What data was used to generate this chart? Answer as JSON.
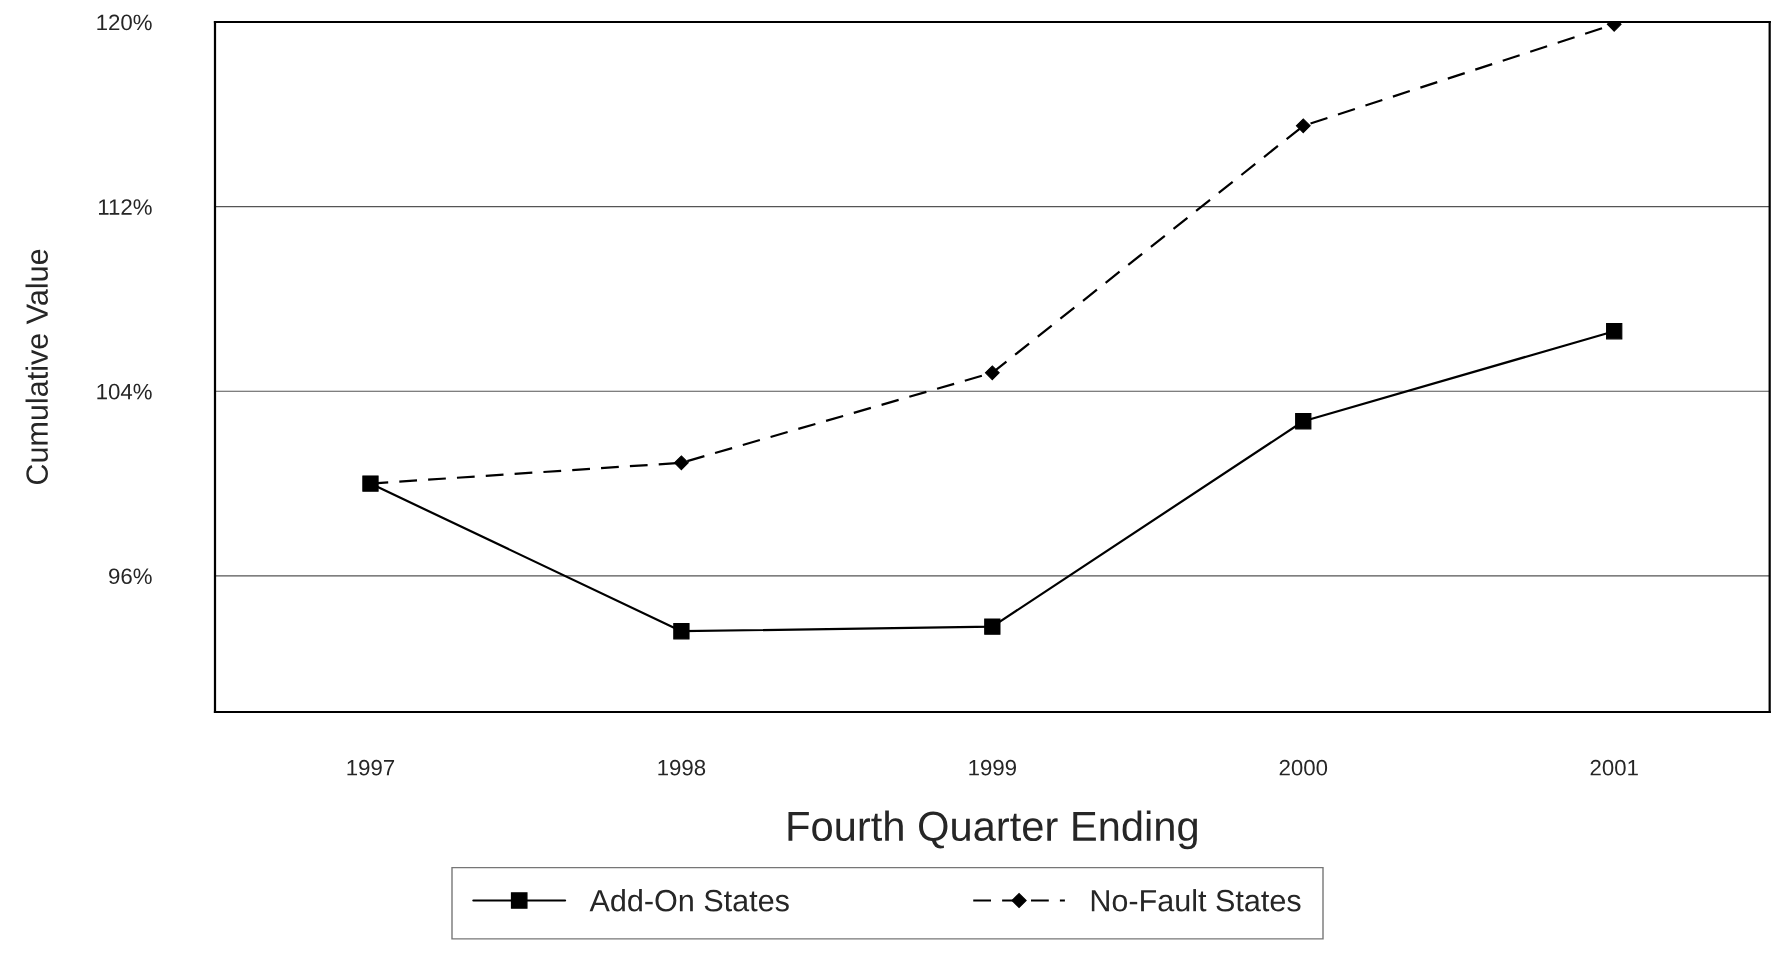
{
  "chart_data": {
    "type": "line",
    "xlabel": "Fourth Quarter Ending",
    "ylabel": "Cumulative Value",
    "categories": [
      "1997",
      "1998",
      "1999",
      "2000",
      "2001"
    ],
    "series": [
      {
        "name": "Add-On States",
        "color": "#000000",
        "marker": "square",
        "line_style": "solid",
        "values": [
          100.0,
          93.6,
          93.8,
          102.7,
          106.6
        ]
      },
      {
        "name": "No-Fault States",
        "color": "#000000",
        "marker": "diamond",
        "line_style": "dashed",
        "values": [
          100.0,
          100.9,
          104.8,
          115.5,
          119.9
        ]
      }
    ],
    "ylim": [
      90.1,
      120
    ],
    "yticks": [
      {
        "value": 96,
        "label": "96%"
      },
      {
        "value": 104,
        "label": "104%"
      },
      {
        "value": 112,
        "label": "112%"
      },
      {
        "value": 120,
        "label": "120%"
      }
    ],
    "grid": "y",
    "legend": "bottom"
  }
}
